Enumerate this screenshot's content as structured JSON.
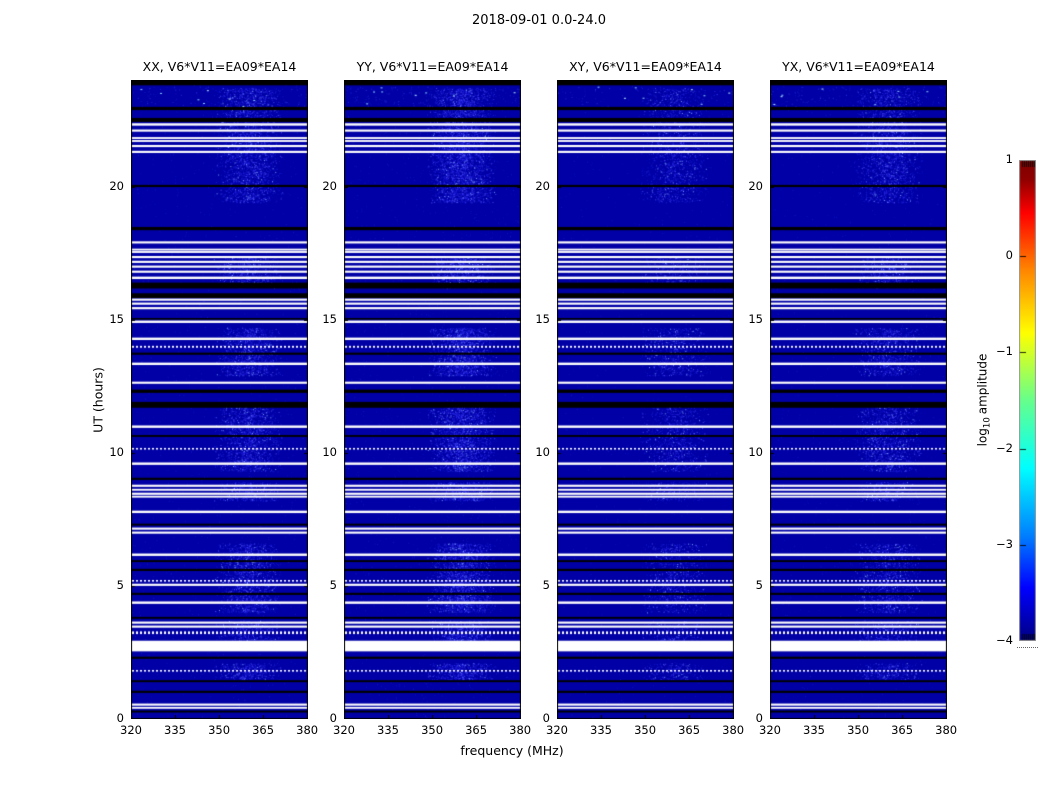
{
  "chart_data": {
    "type": "heatmap",
    "title": "2018-09-01 0.0-24.0",
    "xlabel": "frequency (MHz)",
    "ylabel": "UT (hours)",
    "x_range": [
      320,
      380.3
    ],
    "y_range": [
      0,
      24
    ],
    "x_ticks": [
      320,
      335,
      350,
      365,
      380
    ],
    "y_ticks": [
      0,
      5,
      10,
      15,
      20
    ],
    "grid": false,
    "panels": [
      {
        "pol": "XX",
        "label": "XX, V6*V11=EA09*EA14"
      },
      {
        "pol": "YY",
        "label": "YY, V6*V11=EA09*EA14"
      },
      {
        "pol": "XY",
        "label": "XY, V6*V11=EA09*EA14"
      },
      {
        "pol": "YX",
        "label": "YX, V6*V11=EA09*EA14"
      }
    ],
    "colorbar": {
      "label_pre": "log",
      "label_sub": "10",
      "label_post": "amplitude",
      "ticks": [
        "1",
        "0",
        "−1",
        "−2",
        "−3",
        "−4"
      ],
      "tick_values": [
        1,
        0,
        -1,
        -2,
        -3,
        -4
      ],
      "range": [
        -4,
        1
      ],
      "colormap": "jet"
    },
    "background_value": -4,
    "background_color": "#0000a6",
    "flagged_white_bands_ut": [
      {
        "ut": 22.33,
        "h": 0.09
      },
      {
        "ut": 22.1,
        "h": 0.08
      },
      {
        "ut": 21.82,
        "h": 0.07
      },
      {
        "ut": 21.71,
        "h": 0.07
      },
      {
        "ut": 21.52,
        "h": 0.08
      },
      {
        "ut": 21.3,
        "h": 0.08
      },
      {
        "ut": 17.9,
        "h": 0.08
      },
      {
        "ut": 17.63,
        "h": 0.07
      },
      {
        "ut": 17.54,
        "h": 0.07
      },
      {
        "ut": 17.35,
        "h": 0.08
      },
      {
        "ut": 17.17,
        "h": 0.08
      },
      {
        "ut": 16.99,
        "h": 0.08
      },
      {
        "ut": 16.8,
        "h": 0.08
      },
      {
        "ut": 16.57,
        "h": 0.09
      },
      {
        "ut": 15.75,
        "h": 0.08
      },
      {
        "ut": 15.6,
        "h": 0.08
      },
      {
        "ut": 15.43,
        "h": 0.08
      },
      {
        "ut": 14.92,
        "h": 0.09
      },
      {
        "ut": 14.28,
        "h": 0.09
      },
      {
        "ut": 13.98,
        "h": 0.07,
        "dotted": true
      },
      {
        "ut": 13.34,
        "h": 0.09
      },
      {
        "ut": 12.63,
        "h": 0.08
      },
      {
        "ut": 10.98,
        "h": 0.09
      },
      {
        "ut": 10.15,
        "h": 0.06,
        "dotted": true
      },
      {
        "ut": 9.59,
        "h": 0.09
      },
      {
        "ut": 8.76,
        "h": 0.08
      },
      {
        "ut": 8.61,
        "h": 0.07
      },
      {
        "ut": 8.46,
        "h": 0.08
      },
      {
        "ut": 8.35,
        "h": 0.07
      },
      {
        "ut": 7.78,
        "h": 0.09
      },
      {
        "ut": 7.15,
        "h": 0.08
      },
      {
        "ut": 7.0,
        "h": 0.08
      },
      {
        "ut": 6.17,
        "h": 0.09
      },
      {
        "ut": 5.19,
        "h": 0.06,
        "dotted": true
      },
      {
        "ut": 5.04,
        "h": 0.08
      },
      {
        "ut": 4.37,
        "h": 0.09
      },
      {
        "ut": 3.62,
        "h": 0.08
      },
      {
        "ut": 3.47,
        "h": 0.08
      },
      {
        "ut": 3.24,
        "h": 0.1,
        "dotted": true
      },
      {
        "ut": 2.74,
        "h": 0.4
      },
      {
        "ut": 1.81,
        "h": 0.06,
        "dotted": true
      },
      {
        "ut": 0.54,
        "h": 0.08
      },
      {
        "ut": 0.42,
        "h": 0.07
      }
    ],
    "dark_black_bands_ut": [
      {
        "ut": 23.9,
        "h": 0.2
      },
      {
        "ut": 22.93,
        "h": 0.12
      },
      {
        "ut": 22.5,
        "h": 0.15
      },
      {
        "ut": 20.02,
        "h": 0.08
      },
      {
        "ut": 18.42,
        "h": 0.12
      },
      {
        "ut": 16.28,
        "h": 0.22
      },
      {
        "ut": 15.9,
        "h": 0.18
      },
      {
        "ut": 15.03,
        "h": 0.06
      },
      {
        "ut": 13.72,
        "h": 0.08
      },
      {
        "ut": 12.31,
        "h": 0.12
      },
      {
        "ut": 11.8,
        "h": 0.22
      },
      {
        "ut": 10.63,
        "h": 0.07
      },
      {
        "ut": 9.02,
        "h": 0.08
      },
      {
        "ut": 7.3,
        "h": 0.07
      },
      {
        "ut": 5.93,
        "h": 0.07
      },
      {
        "ut": 5.6,
        "h": 0.08
      },
      {
        "ut": 4.7,
        "h": 0.08
      },
      {
        "ut": 3.8,
        "h": 0.07
      },
      {
        "ut": 2.3,
        "h": 0.08
      },
      {
        "ut": 1.42,
        "h": 0.07
      },
      {
        "ut": 1.02,
        "h": 0.08
      },
      {
        "ut": 0.28,
        "h": 0.07
      }
    ],
    "noise": {
      "enhanced_band_mhz": [
        348,
        372
      ],
      "enhanced_time_ranges_ut": [
        [
          1.5,
          2.1
        ],
        [
          2.9,
          3.7
        ],
        [
          4.0,
          6.6
        ],
        [
          8.2,
          8.9
        ],
        [
          9.3,
          11.9
        ],
        [
          12.9,
          14.7
        ],
        [
          16.2,
          17.4
        ],
        [
          19.4,
          23.7
        ]
      ],
      "top_scatter_ut": [
        22.95,
        23.75
      ],
      "panel_intensity": {
        "XX": 1.0,
        "YY": 1.4,
        "XY": 0.6,
        "YX": 0.85
      }
    }
  }
}
